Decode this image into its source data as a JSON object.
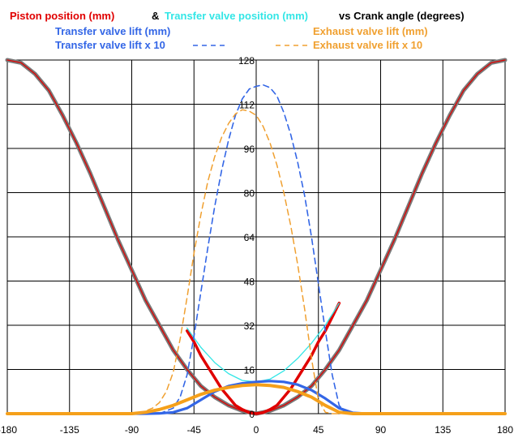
{
  "chart_data": {
    "type": "line",
    "title_parts": [
      {
        "text": "Piston position (mm)",
        "color": "#e00000"
      },
      {
        "text": "&",
        "color": "#000000"
      },
      {
        "text": "Transfer valve position (mm)",
        "color": "#33e6e6"
      },
      {
        "text": "vs Crank angle (degrees)",
        "color": "#000000"
      }
    ],
    "legend": [
      {
        "label": "Transfer valve lift (mm)",
        "color": "#3366e6",
        "style": "solid"
      },
      {
        "label": "Transfer valve lift x 10",
        "color": "#3366e6",
        "style": "dashed"
      },
      {
        "label": "Exhaust valve lift (mm)",
        "color": "#f0a030",
        "style": "solid"
      },
      {
        "label": "Exhaust valve lift  x 10",
        "color": "#f0a030",
        "style": "dashed"
      }
    ],
    "xlim": [
      -180,
      180
    ],
    "ylim": [
      0,
      128
    ],
    "x_ticks": [
      -180,
      -135,
      -90,
      -45,
      0,
      45,
      90,
      135,
      180
    ],
    "y_ticks": [
      0,
      16,
      32,
      48,
      64,
      80,
      96,
      112,
      128
    ],
    "grid": true,
    "series": [
      {
        "key": "piston_outer",
        "color": "#7a7a7a",
        "style": "solid",
        "x": [
          -180,
          -170,
          -160,
          -150,
          -140,
          -130,
          -120,
          -110,
          -100,
          -90,
          -80,
          -70,
          -60,
          -50,
          -40,
          -30,
          -20,
          -10,
          0,
          10,
          20,
          30,
          40,
          50,
          60,
          70,
          80,
          90,
          100,
          110,
          120,
          130,
          140,
          150,
          160,
          170,
          180
        ],
        "y": [
          128,
          127,
          123,
          117,
          108,
          98,
          87,
          75,
          63,
          52,
          41,
          32,
          23,
          16,
          10,
          6,
          3,
          1,
          0,
          1,
          3,
          6,
          10,
          16,
          23,
          32,
          41,
          52,
          63,
          75,
          87,
          98,
          108,
          117,
          123,
          127,
          128
        ]
      },
      {
        "key": "piston_inner",
        "color": "#e00000",
        "style": "solid",
        "x": [
          -180,
          -170,
          -160,
          -150,
          -140,
          -130,
          -120,
          -110,
          -100,
          -90,
          -80,
          -70,
          -60,
          -50,
          -40,
          -30,
          -20,
          -10,
          0,
          10,
          20,
          30,
          40,
          50,
          60,
          70,
          80,
          90,
          100,
          110,
          120,
          130,
          140,
          150,
          160,
          170,
          180
        ],
        "y": [
          128,
          127,
          123,
          117,
          108,
          98,
          87,
          75,
          63,
          52,
          41,
          32,
          23,
          16,
          10,
          6,
          3,
          1,
          0,
          1,
          3,
          6,
          10,
          16,
          23,
          32,
          41,
          52,
          63,
          75,
          87,
          98,
          108,
          117,
          123,
          127,
          128
        ]
      },
      {
        "key": "piston_red_thick",
        "color": "#e00000",
        "style": "solid",
        "x": [
          -50,
          -45,
          -40,
          -35,
          -30,
          -25,
          -20,
          -15,
          -10,
          -5,
          0,
          5,
          10,
          15,
          20,
          25,
          30,
          35,
          40,
          45,
          50,
          55,
          60
        ],
        "y": [
          30,
          26,
          21,
          17,
          13,
          9,
          6,
          3,
          1.5,
          0.4,
          0,
          0.4,
          1.5,
          3,
          6,
          9,
          13,
          17,
          21,
          26,
          30,
          35,
          40
        ]
      },
      {
        "key": "transfer_position",
        "color": "#33e6e6",
        "style": "solid",
        "x": [
          -50,
          -40,
          -30,
          -20,
          -10,
          0,
          10,
          20,
          30,
          40,
          50,
          60
        ],
        "y": [
          31,
          24,
          18.5,
          14.5,
          12,
          11.5,
          12.5,
          15.5,
          20,
          25.5,
          32,
          40
        ]
      },
      {
        "key": "transfer_lift",
        "color": "#3366e6",
        "style": "solid",
        "x": [
          -90,
          -80,
          -70,
          -60,
          -50,
          -40,
          -30,
          -20,
          -10,
          0,
          10,
          20,
          30,
          40,
          50,
          60,
          70,
          80,
          90
        ],
        "y": [
          0,
          0,
          0.1,
          0.5,
          2,
          5,
          8,
          10,
          11,
          11.5,
          11.8,
          11.5,
          10.5,
          8.5,
          5.5,
          2,
          0.3,
          0,
          0
        ]
      },
      {
        "key": "transfer_lift_x10",
        "color": "#3366e6",
        "style": "dashed",
        "x": [
          -70,
          -60,
          -55,
          -50,
          -45,
          -40,
          -35,
          -30,
          -25,
          -20,
          -15,
          -10,
          -5,
          0,
          5,
          10,
          15,
          20,
          25,
          30,
          35,
          40,
          45,
          50,
          55,
          60,
          65
        ],
        "y": [
          0,
          2,
          6,
          14,
          28,
          44,
          60,
          75,
          88,
          99,
          108,
          114,
          117.5,
          118.5,
          119,
          118,
          115,
          109,
          101,
          91,
          79,
          64,
          47,
          30,
          14,
          3,
          0
        ]
      },
      {
        "key": "exhaust_lift",
        "color": "#f5a01a",
        "style": "solid",
        "x": [
          -180,
          -90,
          -80,
          -70,
          -60,
          -50,
          -40,
          -30,
          -20,
          -10,
          0,
          10,
          20,
          30,
          40,
          50,
          60,
          70,
          80,
          90,
          180
        ],
        "y": [
          0,
          0,
          0.5,
          1.5,
          3,
          5,
          7,
          8.5,
          9.5,
          10.2,
          10.5,
          10.2,
          9.5,
          8,
          6,
          3,
          0.5,
          0,
          0,
          0,
          0
        ]
      },
      {
        "key": "exhaust_lift_x10",
        "color": "#f0a030",
        "style": "dashed",
        "x": [
          -85,
          -75,
          -70,
          -65,
          -60,
          -55,
          -50,
          -45,
          -40,
          -35,
          -30,
          -25,
          -20,
          -15,
          -10,
          -5,
          0,
          5,
          10,
          15,
          20,
          25,
          30,
          35,
          40,
          45,
          50,
          55,
          60
        ],
        "y": [
          0,
          2,
          4,
          8,
          15,
          27,
          42,
          58,
          72,
          84,
          93,
          100,
          105,
          108.5,
          110,
          109.5,
          108,
          104,
          98,
          90,
          80,
          68,
          54,
          38,
          20,
          5,
          0.5,
          0,
          0
        ]
      }
    ]
  }
}
